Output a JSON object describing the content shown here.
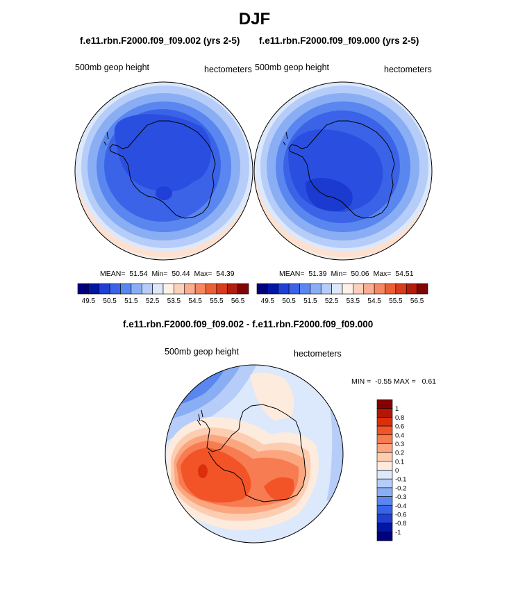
{
  "figure": {
    "title": "DJF",
    "panel_left_title": "f.e11.rbn.F2000.f09_f09.002 (yrs 2-5)",
    "panel_right_title": "f.e11.rbn.F2000.f09_f09.000 (yrs 2-5)",
    "diff_title": "f.e11.rbn.F2000.f09_f09.002 - f.e11.rbn.F2000.f09_f09.000"
  },
  "chart_data": [
    {
      "type": "heatmap",
      "name": "polar-contour-002",
      "projection": "south-polar-stereographic",
      "variable_label": "500mb geop height",
      "units_label": "hectometers",
      "stats": {
        "mean_label": "MEAN=",
        "mean": "51.54",
        "min_label": "Min=",
        "min": "50.44",
        "max_label": "Max=",
        "max": "54.39"
      },
      "colorbar_ticks": [
        "49.5",
        "50.5",
        "51.5",
        "52.5",
        "53.5",
        "54.5",
        "55.5",
        "56.5"
      ]
    },
    {
      "type": "heatmap",
      "name": "polar-contour-000",
      "projection": "south-polar-stereographic",
      "variable_label": "500mb geop height",
      "units_label": "hectometers",
      "stats": {
        "mean_label": "MEAN=",
        "mean": "51.39",
        "min_label": "Min=",
        "min": "50.06",
        "max_label": "Max=",
        "max": "54.51"
      },
      "colorbar_ticks": [
        "49.5",
        "50.5",
        "51.5",
        "52.5",
        "53.5",
        "54.5",
        "55.5",
        "56.5"
      ]
    },
    {
      "type": "heatmap",
      "name": "polar-contour-difference",
      "projection": "south-polar-stereographic",
      "variable_label": "500mb geop height",
      "units_label": "hectometers",
      "stats": {
        "min_label": "MIN =",
        "min": "-0.55",
        "max_label": "MAX =",
        "max": "0.61"
      },
      "colorbar_ticks": [
        "1",
        "0.8",
        "0.6",
        "0.4",
        "0.3",
        "0.2",
        "0.1",
        "0",
        "-0.1",
        "-0.2",
        "-0.3",
        "-0.4",
        "-0.6",
        "-0.8",
        "-1"
      ]
    }
  ],
  "colors": {
    "abs_scale": [
      "#00007f",
      "#0016a5",
      "#1f3fd6",
      "#3a63e8",
      "#5a86ef",
      "#8aaef4",
      "#b5cdf8",
      "#dde9fb",
      "#fff0e8",
      "#fdd0bb",
      "#fbad90",
      "#f68762",
      "#ec5e36",
      "#d93b1c",
      "#b21d0c",
      "#800606"
    ],
    "diff_scale": [
      "#850000",
      "#b31506",
      "#db2f0c",
      "#f25427",
      "#f77c52",
      "#fba67f",
      "#fccdb1",
      "#fdebde",
      "#dce8fb",
      "#b5cdf8",
      "#8aaef4",
      "#5a86ef",
      "#3a63e8",
      "#1f3fd6",
      "#0016a5",
      "#00007f"
    ]
  }
}
